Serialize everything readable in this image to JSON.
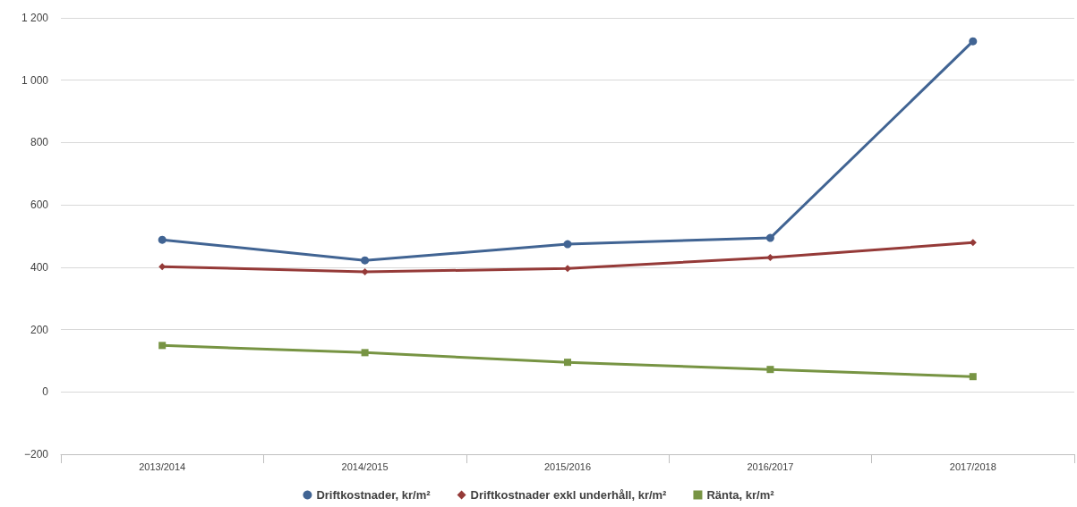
{
  "chart_data": {
    "type": "line",
    "categories": [
      "2013/2014",
      "2014/2015",
      "2015/2016",
      "2016/2017",
      "2017/2018"
    ],
    "series": [
      {
        "name": "Driftkostnader, kr/m²",
        "color": "#416493",
        "marker": "circle",
        "values": [
          488,
          422,
          474,
          494,
          1125
        ]
      },
      {
        "name": "Driftkostnader exkl underhåll, kr/m²",
        "color": "#953a38",
        "marker": "diamond",
        "values": [
          402,
          385,
          396,
          431,
          479
        ]
      },
      {
        "name": "Ränta, kr/m²",
        "color": "#779443",
        "marker": "square",
        "values": [
          149,
          126,
          95,
          72,
          49
        ]
      }
    ],
    "ylim": [
      -200,
      1200
    ],
    "yticks": [
      {
        "value": -200,
        "label": "−200"
      },
      0,
      200,
      400,
      600,
      800,
      {
        "value": 1000,
        "label": "1 000"
      },
      {
        "value": 1200,
        "label": "1 200"
      }
    ],
    "grid": "y",
    "legend": "bottom",
    "line_style": "solid"
  }
}
